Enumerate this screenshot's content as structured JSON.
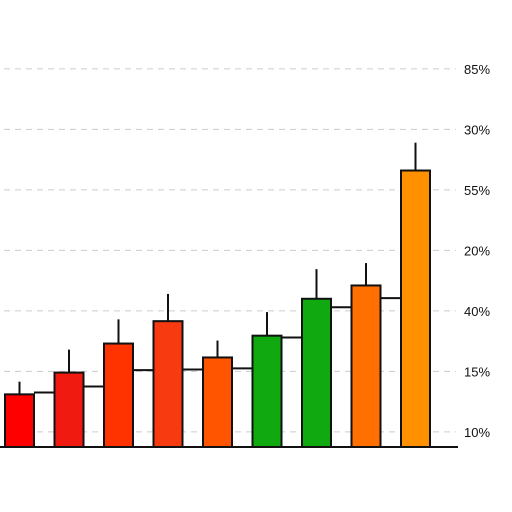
{
  "chart_data": {
    "type": "bar",
    "title": "",
    "xlabel": "",
    "ylabel": "",
    "ylim": [
      0,
      7.5
    ],
    "grid": true,
    "yaxis_position": "right",
    "yticks": [
      {
        "value": 0.25,
        "label": "10%"
      },
      {
        "value": 1.25,
        "label": "15%"
      },
      {
        "value": 2.25,
        "label": "40%"
      },
      {
        "value": 3.25,
        "label": "20%"
      },
      {
        "value": 4.25,
        "label": "55%"
      },
      {
        "value": 5.25,
        "label": "30%"
      },
      {
        "value": 6.25,
        "label": "85%"
      }
    ],
    "values": [
      0.87,
      1.23,
      1.71,
      2.08,
      1.48,
      1.84,
      2.45,
      2.67,
      4.57
    ],
    "err_upper": [
      1.08,
      1.61,
      2.11,
      2.53,
      1.76,
      2.23,
      2.94,
      3.04,
      5.03
    ],
    "step_values": [
      0.9,
      1.0,
      1.27,
      1.28,
      1.3,
      1.81,
      2.31,
      2.46
    ],
    "colors": [
      "#ff0000",
      "#f01a10",
      "#ff3300",
      "#f83a10",
      "#ff5500",
      "#10aa10",
      "#10aa10",
      "#ff7000",
      "#ff9000"
    ]
  }
}
